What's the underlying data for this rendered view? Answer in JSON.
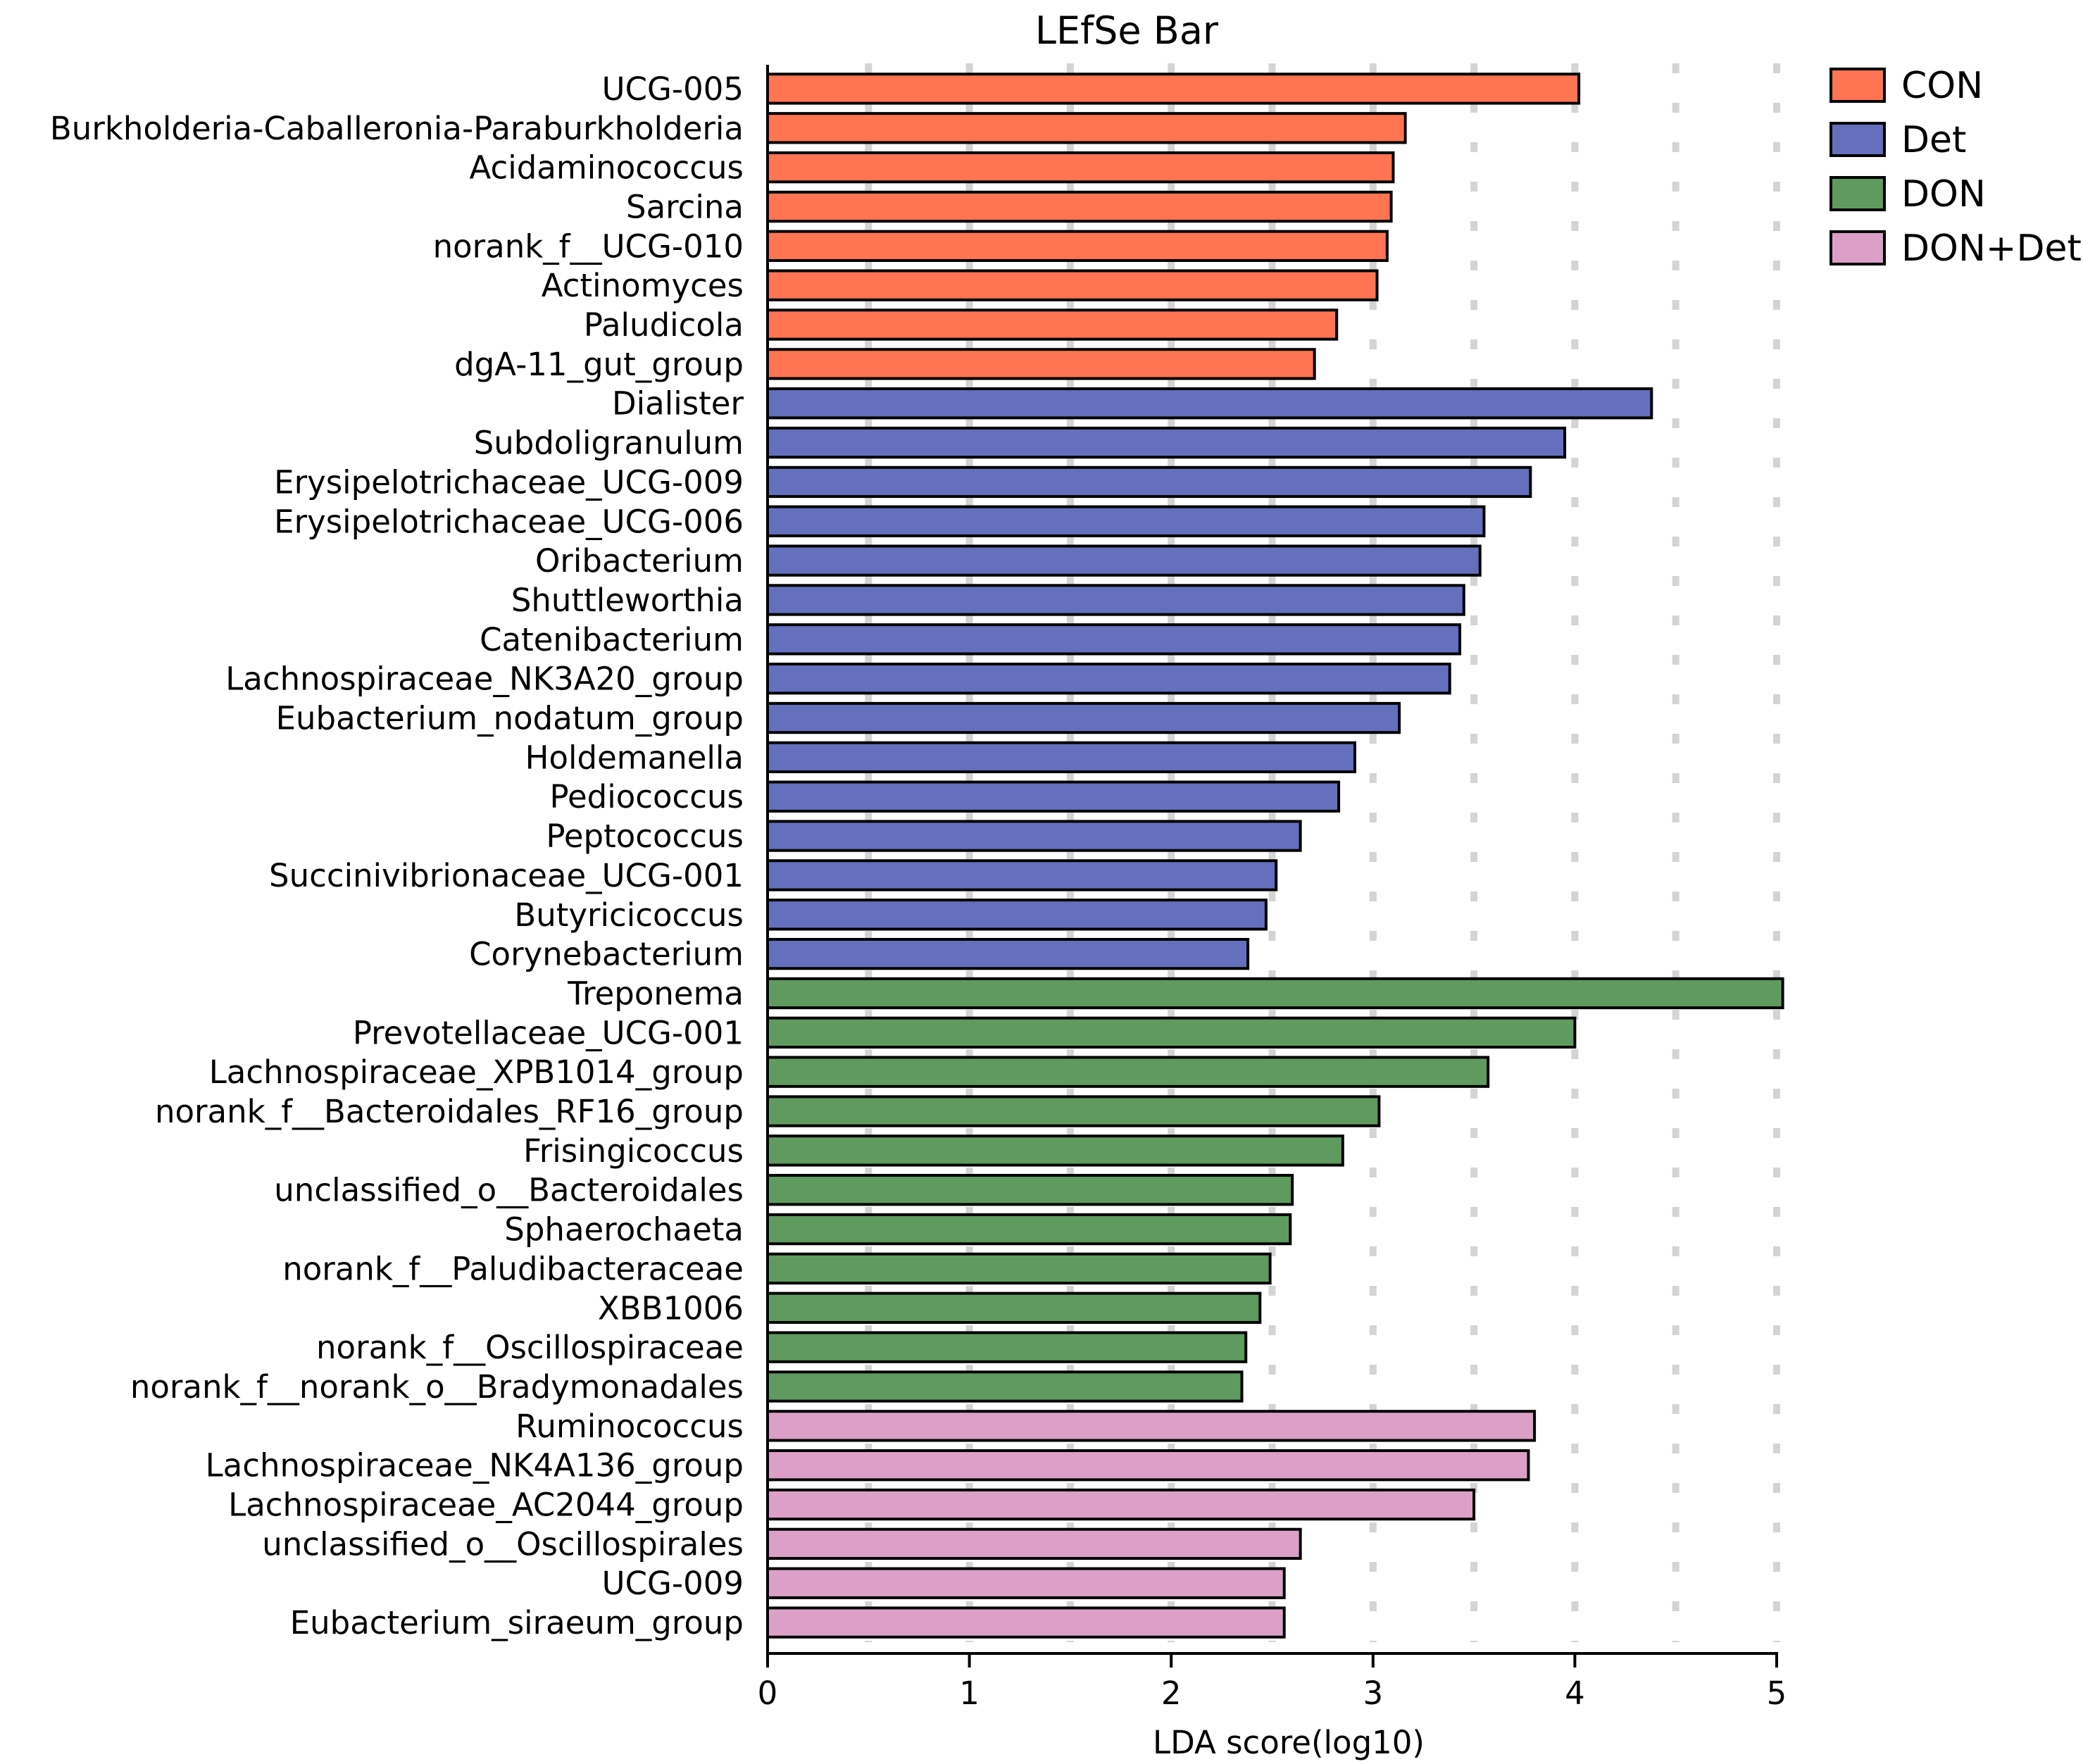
{
  "chart_data": {
    "type": "bar",
    "orientation": "horizontal",
    "title": "LEfSe Bar",
    "xlabel": "LDA score(log10)",
    "ylabel": "",
    "xlim": [
      0,
      5
    ],
    "xticks": [
      "0",
      "1",
      "2",
      "3",
      "4",
      "5"
    ],
    "grid": "vertical dashed",
    "legend_position": "top-right",
    "groups": [
      {
        "name": "CON",
        "color": "#ff7452"
      },
      {
        "name": "Det",
        "color": "#6470bd"
      },
      {
        "name": "DON",
        "color": "#5f9b5f"
      },
      {
        "name": "DON+Det",
        "color": "#dca0c8"
      }
    ],
    "bars": [
      {
        "label": "UCG-005",
        "value": 4.02,
        "group": "CON"
      },
      {
        "label": "Burkholderia-Caballeronia-Paraburkholderia",
        "value": 3.16,
        "group": "CON"
      },
      {
        "label": "Acidaminococcus",
        "value": 3.1,
        "group": "CON"
      },
      {
        "label": "Sarcina",
        "value": 3.09,
        "group": "CON"
      },
      {
        "label": "norank_f__UCG-010",
        "value": 3.07,
        "group": "CON"
      },
      {
        "label": "Actinomyces",
        "value": 3.02,
        "group": "CON"
      },
      {
        "label": "Paludicola",
        "value": 2.82,
        "group": "CON"
      },
      {
        "label": "dgA-11_gut_group",
        "value": 2.71,
        "group": "CON"
      },
      {
        "label": "Dialister",
        "value": 4.38,
        "group": "Det"
      },
      {
        "label": "Subdoligranulum",
        "value": 3.95,
        "group": "Det"
      },
      {
        "label": "Erysipelotrichaceae_UCG-009",
        "value": 3.78,
        "group": "Det"
      },
      {
        "label": "Erysipelotrichaceae_UCG-006",
        "value": 3.55,
        "group": "Det"
      },
      {
        "label": "Oribacterium",
        "value": 3.53,
        "group": "Det"
      },
      {
        "label": "Shuttleworthia",
        "value": 3.45,
        "group": "Det"
      },
      {
        "label": "Catenibacterium",
        "value": 3.43,
        "group": "Det"
      },
      {
        "label": "Lachnospiraceae_NK3A20_group",
        "value": 3.38,
        "group": "Det"
      },
      {
        "label": "Eubacterium_nodatum_group",
        "value": 3.13,
        "group": "Det"
      },
      {
        "label": "Holdemanella",
        "value": 2.91,
        "group": "Det"
      },
      {
        "label": "Pediococcus",
        "value": 2.83,
        "group": "Det"
      },
      {
        "label": "Peptococcus",
        "value": 2.64,
        "group": "Det"
      },
      {
        "label": "Succinivibrionaceae_UCG-001",
        "value": 2.52,
        "group": "Det"
      },
      {
        "label": "Butyricicoccus",
        "value": 2.47,
        "group": "Det"
      },
      {
        "label": "Corynebacterium",
        "value": 2.38,
        "group": "Det"
      },
      {
        "label": "Treponema",
        "value": 5.03,
        "group": "DON"
      },
      {
        "label": "Prevotellaceae_UCG-001",
        "value": 4.0,
        "group": "DON"
      },
      {
        "label": "Lachnospiraceae_XPB1014_group",
        "value": 3.57,
        "group": "DON"
      },
      {
        "label": "norank_f__Bacteroidales_RF16_group",
        "value": 3.03,
        "group": "DON"
      },
      {
        "label": "Frisingicoccus",
        "value": 2.85,
        "group": "DON"
      },
      {
        "label": "unclassified_o__Bacteroidales",
        "value": 2.6,
        "group": "DON"
      },
      {
        "label": "Sphaerochaeta",
        "value": 2.59,
        "group": "DON"
      },
      {
        "label": "norank_f__Paludibacteraceae",
        "value": 2.49,
        "group": "DON"
      },
      {
        "label": "XBB1006",
        "value": 2.44,
        "group": "DON"
      },
      {
        "label": "norank_f__Oscillospiraceae",
        "value": 2.37,
        "group": "DON"
      },
      {
        "label": "norank_f__norank_o__Bradymonadales",
        "value": 2.35,
        "group": "DON"
      },
      {
        "label": "Ruminococcus",
        "value": 3.8,
        "group": "DON+Det"
      },
      {
        "label": "Lachnospiraceae_NK4A136_group",
        "value": 3.77,
        "group": "DON+Det"
      },
      {
        "label": "Lachnospiraceae_AC2044_group",
        "value": 3.5,
        "group": "DON+Det"
      },
      {
        "label": "unclassified_o__Oscillospirales",
        "value": 2.64,
        "group": "DON+Det"
      },
      {
        "label": "UCG-009",
        "value": 2.56,
        "group": "DON+Det"
      },
      {
        "label": "Eubacterium_siraeum_group",
        "value": 2.56,
        "group": "DON+Det"
      }
    ]
  }
}
